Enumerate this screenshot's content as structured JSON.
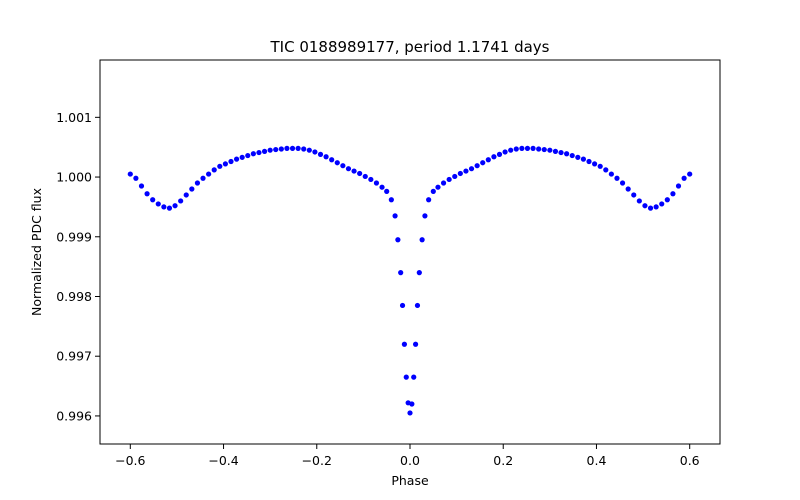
{
  "chart_data": {
    "type": "scatter",
    "title": "TIC 0188989177, period 1.1741 days",
    "xlabel": "Phase",
    "ylabel": "Normalized PDC flux",
    "xlim": [
      -0.665,
      0.665
    ],
    "ylim": [
      0.99553,
      1.00196
    ],
    "x_ticks": [
      -0.6,
      -0.4,
      -0.2,
      0.0,
      0.2,
      0.4,
      0.6
    ],
    "x_tick_labels": [
      "−0.6",
      "−0.4",
      "−0.2",
      "0.0",
      "0.2",
      "0.4",
      "0.6"
    ],
    "y_ticks": [
      0.996,
      0.997,
      0.998,
      0.999,
      1.0,
      1.001
    ],
    "y_tick_labels": [
      "0.996",
      "0.997",
      "0.998",
      "0.999",
      "1.000",
      "1.001"
    ],
    "grid": false,
    "marker_color": "#0000ff",
    "series": [
      {
        "x": [
          -0.6,
          -0.588,
          -0.576,
          -0.564,
          -0.552,
          -0.54,
          -0.528,
          -0.516,
          -0.504,
          -0.492,
          -0.48,
          -0.468,
          -0.456,
          -0.444,
          -0.432,
          -0.42,
          -0.408,
          -0.396,
          -0.384,
          -0.372,
          -0.36,
          -0.348,
          -0.336,
          -0.324,
          -0.312,
          -0.3,
          -0.288,
          -0.276,
          -0.264,
          -0.252,
          -0.24,
          -0.228,
          -0.216,
          -0.204,
          -0.192,
          -0.18,
          -0.168,
          -0.156,
          -0.144,
          -0.132,
          -0.12,
          -0.108,
          -0.096,
          -0.084,
          -0.072,
          -0.06,
          -0.05,
          -0.04,
          -0.032,
          -0.026,
          -0.02,
          -0.016,
          -0.012,
          -0.008,
          -0.004,
          0.0,
          0.004,
          0.008,
          0.012,
          0.016,
          0.02,
          0.026,
          0.032,
          0.04,
          0.05,
          0.06,
          0.072,
          0.084,
          0.096,
          0.108,
          0.12,
          0.132,
          0.144,
          0.156,
          0.168,
          0.18,
          0.192,
          0.204,
          0.216,
          0.228,
          0.24,
          0.252,
          0.264,
          0.276,
          0.288,
          0.3,
          0.312,
          0.324,
          0.336,
          0.348,
          0.36,
          0.372,
          0.384,
          0.396,
          0.408,
          0.42,
          0.432,
          0.444,
          0.456,
          0.468,
          0.48,
          0.492,
          0.504,
          0.516,
          0.528,
          0.54,
          0.552,
          0.564,
          0.576,
          0.588,
          0.6
        ],
        "y": [
          1.00005,
          0.99998,
          0.99985,
          0.99972,
          0.99962,
          0.99955,
          0.9995,
          0.99948,
          0.99952,
          0.9996,
          0.9997,
          0.9998,
          0.9999,
          0.99998,
          1.00005,
          1.00012,
          1.00018,
          1.00022,
          1.00026,
          1.0003,
          1.00033,
          1.00036,
          1.00039,
          1.00041,
          1.00043,
          1.00045,
          1.00046,
          1.00047,
          1.00048,
          1.00048,
          1.00048,
          1.00047,
          1.00045,
          1.00042,
          1.00038,
          1.00034,
          1.00029,
          1.00024,
          1.00019,
          1.00014,
          1.0001,
          1.00006,
          1.00001,
          0.99996,
          0.9999,
          0.99983,
          0.99976,
          0.99962,
          0.99935,
          0.99895,
          0.9984,
          0.99785,
          0.9972,
          0.99665,
          0.99622,
          0.99605,
          0.9962,
          0.99665,
          0.9972,
          0.99785,
          0.9984,
          0.99895,
          0.99935,
          0.99962,
          0.99976,
          0.99983,
          0.9999,
          0.99996,
          1.00001,
          1.00006,
          1.0001,
          1.00014,
          1.00019,
          1.00024,
          1.00029,
          1.00034,
          1.00038,
          1.00042,
          1.00045,
          1.00047,
          1.00048,
          1.00048,
          1.00048,
          1.00047,
          1.00046,
          1.00045,
          1.00043,
          1.00041,
          1.00039,
          1.00036,
          1.00033,
          1.0003,
          1.00026,
          1.00022,
          1.00018,
          1.00012,
          1.00005,
          0.99998,
          0.9999,
          0.9998,
          0.9997,
          0.9996,
          0.99952,
          0.99948,
          0.9995,
          0.99955,
          0.99962,
          0.99972,
          0.99985,
          0.99998,
          1.00005
        ]
      }
    ]
  }
}
